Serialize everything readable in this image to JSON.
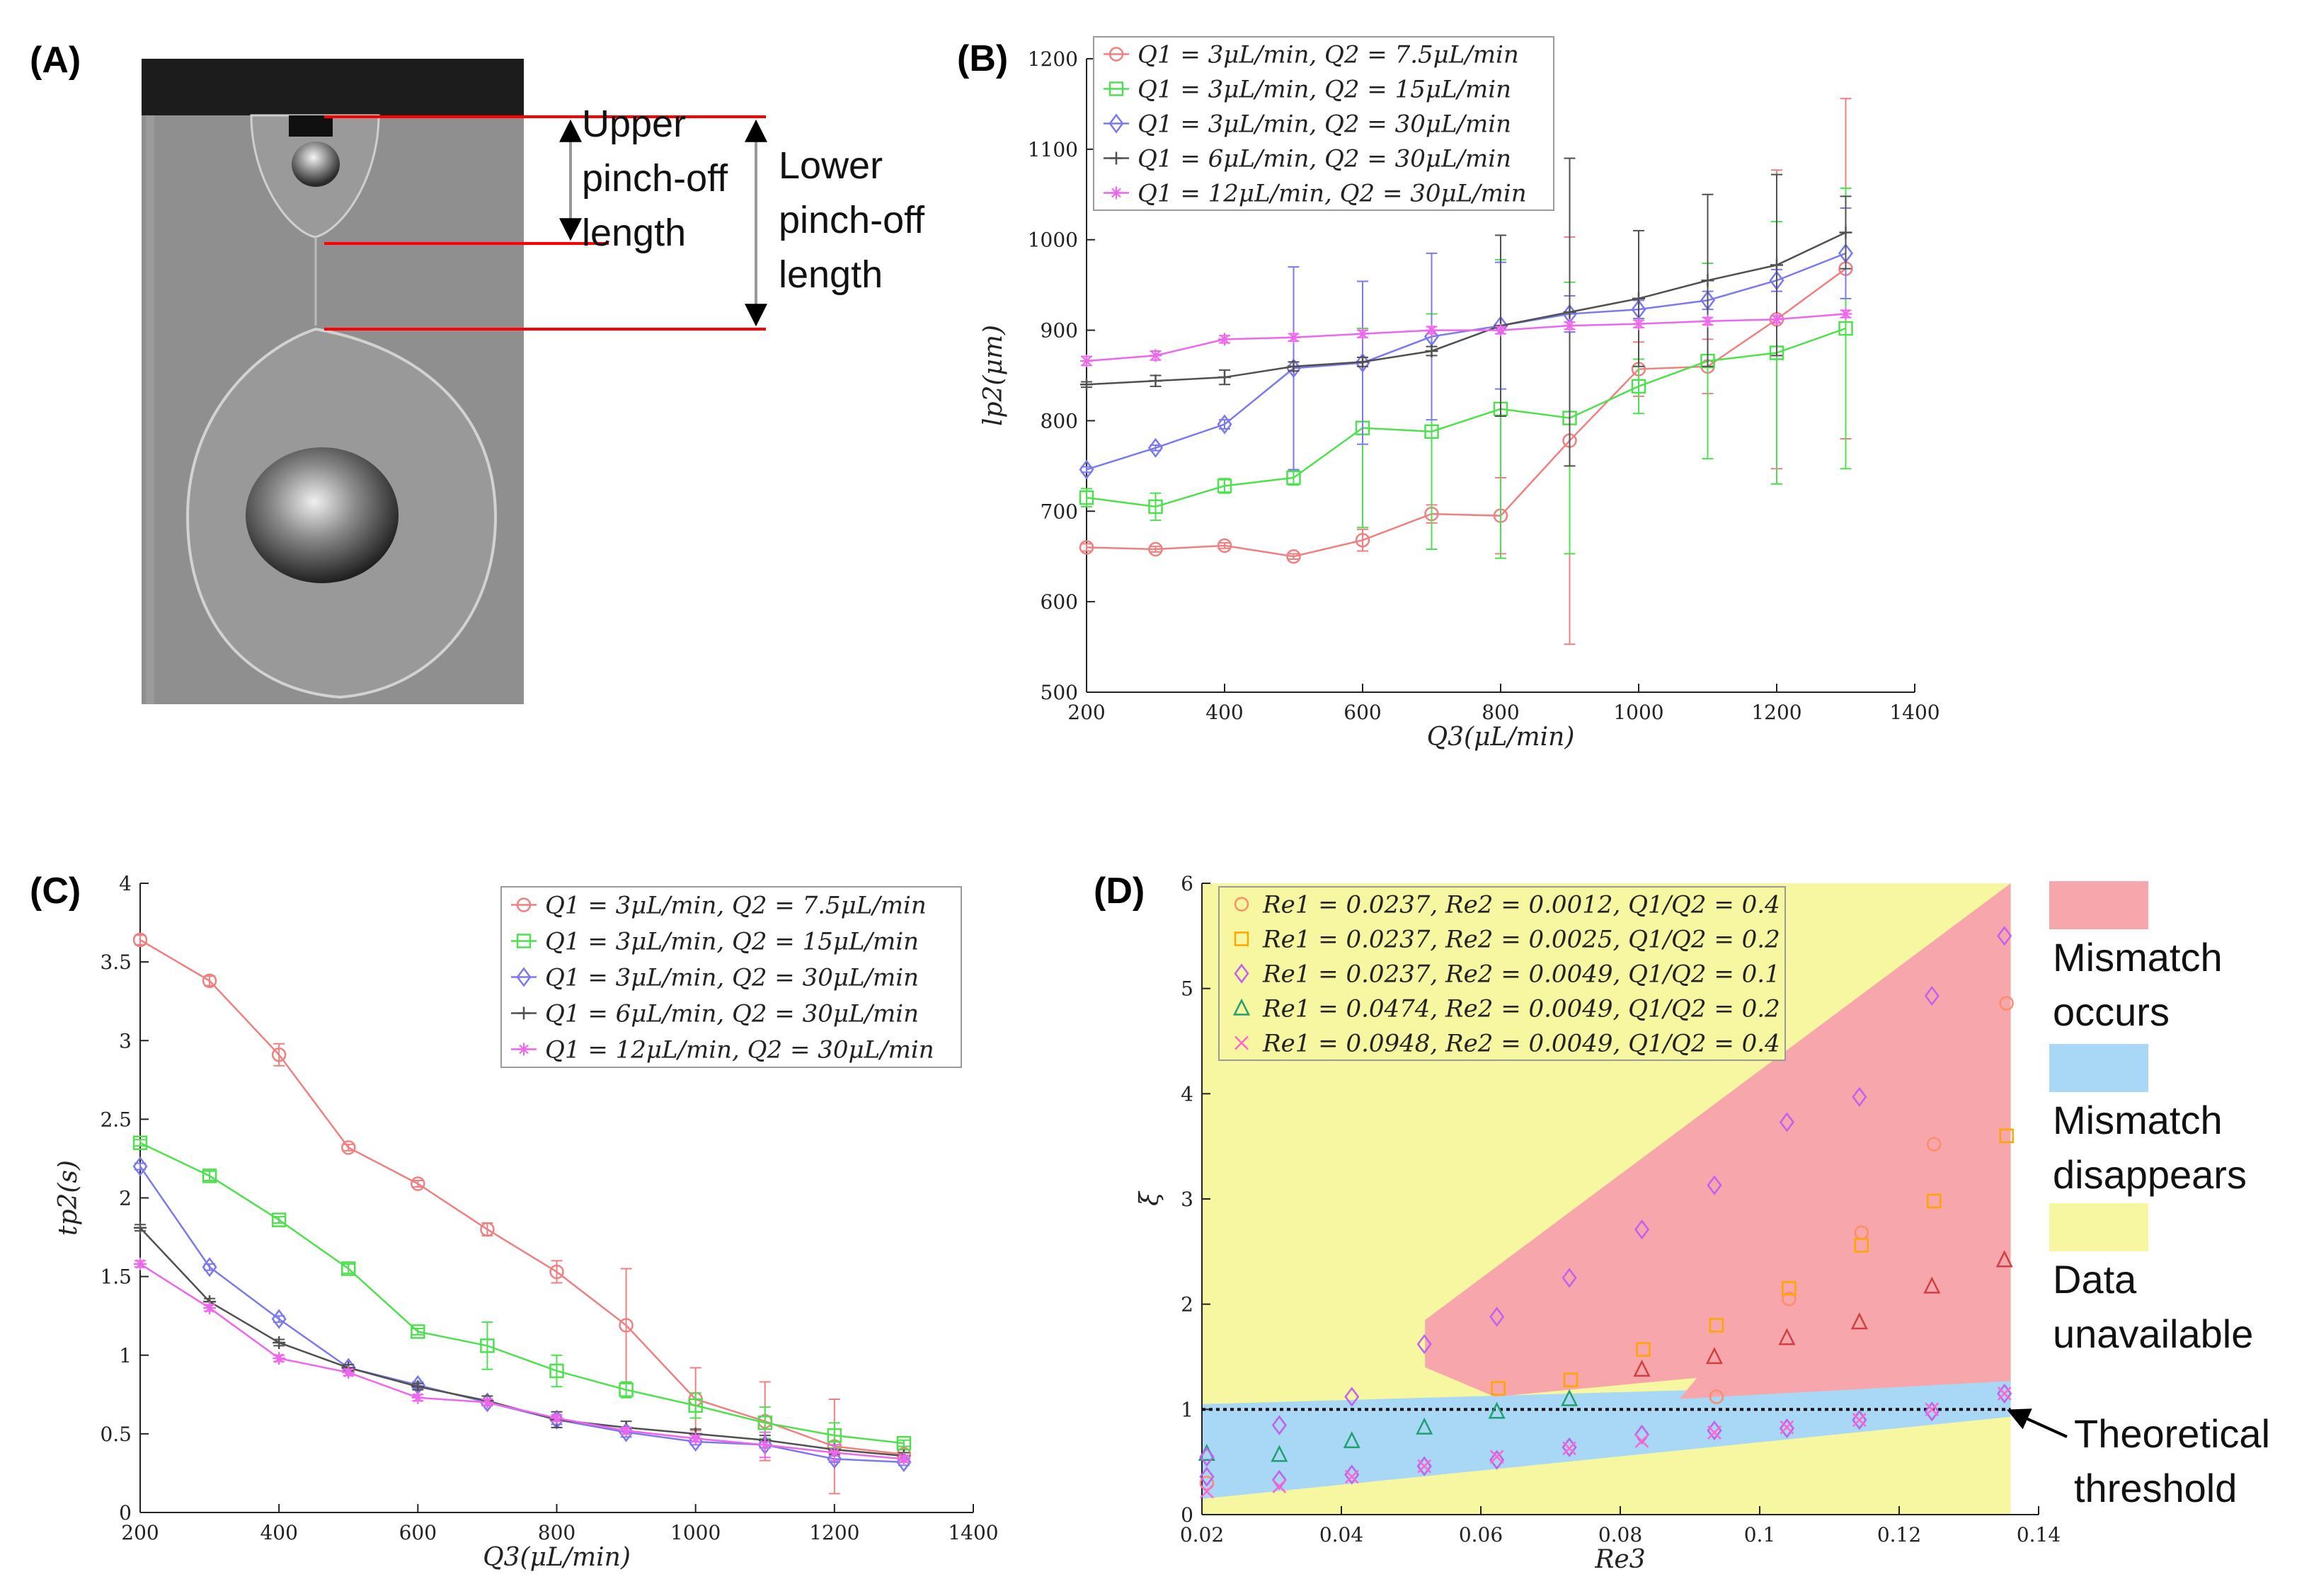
{
  "panels": {
    "A": {
      "label": "(A)",
      "upper_text": [
        "Upper",
        "pinch-off",
        "length"
      ],
      "lower_text": [
        "Lower",
        "pinch-off",
        "length"
      ]
    },
    "B": {
      "label": "(B)"
    },
    "C": {
      "label": "(C)"
    },
    "D": {
      "label": "(D)",
      "region_legend": [
        {
          "label": [
            "Mismatch",
            "occurs"
          ],
          "color": "#f7a7ab"
        },
        {
          "label": [
            "Mismatch",
            "disappears"
          ],
          "color": "#a8d8f6"
        },
        {
          "label": [
            "Data",
            "unavailable"
          ],
          "color": "#f7f7a2"
        }
      ],
      "threshold_text": [
        "Theoretical",
        "threshold"
      ]
    }
  },
  "chart_data": [
    {
      "id": "B",
      "type": "line",
      "xlabel": "Q3(μL/min)",
      "ylabel": "lp2(μm)",
      "xlim": [
        200,
        1400
      ],
      "ylim": [
        500,
        1200
      ],
      "xticks": [
        200,
        400,
        600,
        800,
        1000,
        1200,
        1400
      ],
      "yticks": [
        500,
        600,
        700,
        800,
        900,
        1000,
        1100,
        1200
      ],
      "x": [
        200,
        300,
        400,
        500,
        600,
        700,
        800,
        900,
        1000,
        1100,
        1200,
        1300
      ],
      "series": [
        {
          "name": "Q1 = 3μL/min, Q2 = 7.5μL/min",
          "color": "#f08080",
          "marker": "o",
          "values": [
            660,
            658,
            662,
            650,
            668,
            697,
            695,
            778,
            857,
            860,
            912,
            968
          ],
          "errors": [
            4,
            3,
            3,
            3,
            12,
            10,
            42,
            225,
            30,
            30,
            165,
            188
          ]
        },
        {
          "name": "Q1 = 3μL/min, Q2 = 15μL/min",
          "color": "#4fe04f",
          "marker": "s",
          "values": [
            715,
            705,
            728,
            737,
            792,
            788,
            813,
            803,
            838,
            866,
            875,
            902
          ],
          "errors": [
            10,
            15,
            8,
            8,
            110,
            130,
            165,
            150,
            30,
            108,
            145,
            155
          ]
        },
        {
          "name": "Q1 = 3μL/min, Q2 = 30μL/min",
          "color": "#7a7aee",
          "marker": "d",
          "values": [
            746,
            770,
            796,
            858,
            864,
            893,
            905,
            918,
            923,
            933,
            955,
            985
          ],
          "errors": [
            3,
            3,
            5,
            112,
            90,
            92,
            70,
            20,
            10,
            10,
            12,
            50
          ]
        },
        {
          "name": "Q1 = 6μL/min, Q2 = 30μL/min",
          "color": "#505050",
          "marker": "+",
          "values": [
            840,
            844,
            848,
            860,
            865,
            877,
            905,
            920,
            935,
            955,
            972,
            1008
          ],
          "errors": [
            3,
            6,
            8,
            5,
            5,
            5,
            100,
            170,
            75,
            95,
            100,
            40
          ]
        },
        {
          "name": "Q1 = 12μL/min, Q2 = 30μL/min",
          "color": "#ee66ee",
          "marker": "*",
          "values": [
            866,
            872,
            890,
            892,
            896,
            900,
            900,
            905,
            907,
            910,
            912,
            918
          ],
          "errors": [
            5,
            5,
            4,
            4,
            4,
            4,
            4,
            4,
            4,
            4,
            4,
            4
          ]
        }
      ]
    },
    {
      "id": "C",
      "type": "line",
      "xlabel": "Q3(μL/min)",
      "ylabel": "tp2(s)",
      "xlim": [
        200,
        1400
      ],
      "ylim": [
        0,
        4
      ],
      "xticks": [
        200,
        400,
        600,
        800,
        1000,
        1200,
        1400
      ],
      "yticks": [
        0,
        0.5,
        1,
        1.5,
        2,
        2.5,
        3,
        3.5,
        4
      ],
      "x": [
        200,
        300,
        400,
        500,
        600,
        700,
        800,
        900,
        1000,
        1100,
        1200,
        1300
      ],
      "series": [
        {
          "name": "Q1 = 3μL/min, Q2 = 7.5μL/min",
          "color": "#f08080",
          "marker": "o",
          "values": [
            3.64,
            3.38,
            2.91,
            2.32,
            2.09,
            1.8,
            1.53,
            1.19,
            0.72,
            0.58,
            0.42,
            0.37
          ],
          "errors": [
            0.03,
            0.03,
            0.07,
            0.02,
            0.02,
            0.04,
            0.07,
            0.36,
            0.2,
            0.25,
            0.3,
            0.05
          ]
        },
        {
          "name": "Q1 = 3μL/min, Q2 = 15μL/min",
          "color": "#4fe04f",
          "marker": "s",
          "values": [
            2.35,
            2.14,
            1.86,
            1.55,
            1.15,
            1.06,
            0.9,
            0.78,
            0.68,
            0.57,
            0.49,
            0.44
          ],
          "errors": [
            0.02,
            0.03,
            0.02,
            0.03,
            0.02,
            0.15,
            0.1,
            0.05,
            0.08,
            0.1,
            0.08,
            0.02
          ]
        },
        {
          "name": "Q1 = 3μL/min, Q2 = 30μL/min",
          "color": "#7a7aee",
          "marker": "d",
          "values": [
            2.2,
            1.56,
            1.23,
            0.92,
            0.81,
            0.7,
            0.59,
            0.51,
            0.45,
            0.43,
            0.34,
            0.32
          ],
          "errors": [
            0.02,
            0.02,
            0.02,
            0.02,
            0.02,
            0.02,
            0.03,
            0.03,
            0.02,
            0.02,
            0.02,
            0.02
          ]
        },
        {
          "name": "Q1 = 6μL/min, Q2 = 30μL/min",
          "color": "#505050",
          "marker": "+",
          "values": [
            1.81,
            1.34,
            1.08,
            0.92,
            0.8,
            0.71,
            0.59,
            0.54,
            0.5,
            0.46,
            0.4,
            0.36
          ],
          "errors": [
            0.02,
            0.02,
            0.02,
            0.02,
            0.02,
            0.03,
            0.05,
            0.04,
            0.03,
            0.03,
            0.03,
            0.02
          ]
        },
        {
          "name": "Q1 = 12μL/min, Q2 = 30μL/min",
          "color": "#ee66ee",
          "marker": "*",
          "values": [
            1.58,
            1.3,
            0.98,
            0.89,
            0.73,
            0.7,
            0.6,
            0.52,
            0.47,
            0.43,
            0.38,
            0.34
          ],
          "errors": [
            0.02,
            0.02,
            0.02,
            0.02,
            0.02,
            0.02,
            0.02,
            0.02,
            0.02,
            0.08,
            0.05,
            0.02
          ]
        }
      ]
    },
    {
      "id": "D",
      "type": "scatter",
      "xlabel": "Re3",
      "ylabel": "ξ",
      "xlim": [
        0.02,
        0.14
      ],
      "ylim": [
        0,
        6
      ],
      "xticks": [
        0.02,
        0.04,
        0.06,
        0.08,
        0.1,
        0.12,
        0.14
      ],
      "yticks": [
        0,
        1,
        2,
        3,
        4,
        5,
        6
      ],
      "threshold": 1,
      "regions": {
        "unavailable": [
          [
            0.02,
            0
          ],
          [
            0.136,
            0
          ],
          [
            0.136,
            6
          ],
          [
            0.02,
            6
          ]
        ],
        "disappears": [
          [
            0.02,
            0.15
          ],
          [
            0.136,
            0.93
          ],
          [
            0.136,
            1.27
          ],
          [
            0.02,
            1.05
          ]
        ],
        "occurs": [
          [
            0.052,
            1.85
          ],
          [
            0.136,
            6
          ],
          [
            0.136,
            1.27
          ],
          [
            0.0885,
            1.1
          ],
          [
            0.091,
            1.3
          ],
          [
            0.062,
            1.12
          ],
          [
            0.052,
            1.4
          ]
        ]
      },
      "series": [
        {
          "name": "Re1 = 0.0237, Re2 = 0.0012, Q1/Q2 = 0.4",
          "color": "#ff8c69",
          "marker": "o",
          "x": [
            0.0207,
            0.0938,
            0.1042,
            0.1146,
            0.125,
            0.1354
          ],
          "y": [
            0.3,
            1.12,
            2.05,
            2.68,
            3.52,
            4.86
          ]
        },
        {
          "name": "Re1 = 0.0237, Re2 = 0.0025, Q1/Q2 = 0.2",
          "color": "#ffa500",
          "marker": "s",
          "x": [
            0.0625,
            0.0729,
            0.0833,
            0.0938,
            0.1042,
            0.1146,
            0.125,
            0.1354
          ],
          "y": [
            1.2,
            1.28,
            1.57,
            1.8,
            2.15,
            2.56,
            2.98,
            3.6
          ]
        },
        {
          "name": "Re1 = 0.0237, Re2 = 0.0049, Q1/Q2 = 0.1",
          "color": "#c060f0",
          "marker": "d",
          "x": [
            0.0207,
            0.0311,
            0.0415,
            0.0519,
            0.0623,
            0.0727,
            0.0831,
            0.0935,
            0.1039,
            0.1143,
            0.1247,
            0.1351
          ],
          "y": [
            0.36,
            0.33,
            0.38,
            0.46,
            0.52,
            0.64,
            0.76,
            0.8,
            0.82,
            0.9,
            0.98,
            1.15
          ]
        },
        {
          "name": "Re1 = 0.0474, Re2 = 0.0049, Q1/Q2 = 0.2",
          "color": "#20a070",
          "marker": "^",
          "x": [
            0.0207,
            0.0311,
            0.0415,
            0.0519,
            0.0623,
            0.0727
          ],
          "y": [
            0.58,
            0.57,
            0.7,
            0.83,
            0.98,
            1.1
          ]
        },
        {
          "name": "Re1 = 0.0948, Re2 = 0.0049, Q1/Q2 = 0.4",
          "color": "#ff66cc",
          "marker": "x",
          "x": [
            0.0207,
            0.0311,
            0.0415,
            0.0519,
            0.0623,
            0.0727,
            0.0831,
            0.0935,
            0.1039,
            0.1143,
            0.1247,
            0.1351
          ],
          "y": [
            0.22,
            0.27,
            0.36,
            0.46,
            0.55,
            0.63,
            0.7,
            0.78,
            0.83,
            0.9,
            1.0,
            1.15
          ]
        },
        {
          "name": "upper-branch-diamonds",
          "legend": false,
          "color": "#c060f0",
          "marker": "d",
          "x": [
            0.0207,
            0.0311,
            0.0415,
            0.0519,
            0.0623,
            0.0727,
            0.0831,
            0.0935,
            0.1039,
            0.1143,
            0.1247,
            0.1351
          ],
          "y": [
            0.55,
            0.85,
            1.12,
            1.62,
            1.88,
            2.25,
            2.71,
            3.13,
            3.73,
            3.97,
            4.93,
            5.5
          ]
        },
        {
          "name": "upper-branch-triangles",
          "legend": false,
          "color": "#d04040",
          "marker": "^",
          "x": [
            0.0831,
            0.0935,
            0.1039,
            0.1143,
            0.1247,
            0.1351
          ],
          "y": [
            1.38,
            1.5,
            1.68,
            1.83,
            2.17,
            2.42
          ]
        }
      ]
    }
  ]
}
